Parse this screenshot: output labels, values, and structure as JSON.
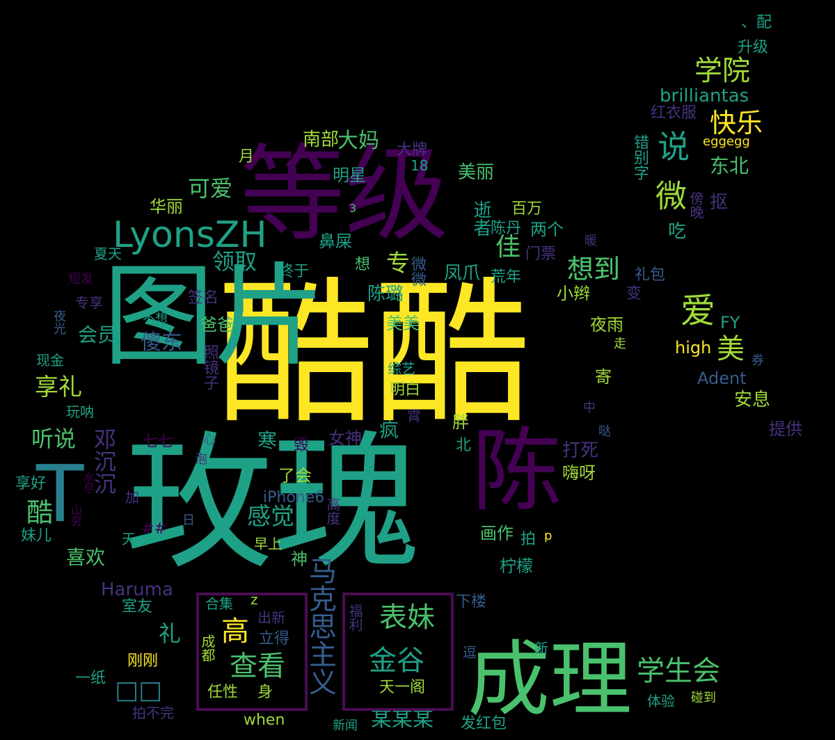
{
  "palette": {
    "yellow": "#fde725",
    "lime": "#a0da39",
    "green": "#4ac16d",
    "teal": "#1fa187",
    "cyan": "#277f8e",
    "blue": "#365c8d",
    "indigo": "#46327e",
    "purple": "#440154"
  },
  "words": [
    {
      "text": "酷酷",
      "color": "yellow"
    },
    {
      "text": "玫瑰",
      "color": "teal"
    },
    {
      "text": "等级",
      "color": "purple"
    },
    {
      "text": "成理",
      "color": "green"
    },
    {
      "text": "图片",
      "color": "teal"
    },
    {
      "text": "陈",
      "color": "purple"
    },
    {
      "text": "T",
      "color": "cyan"
    },
    {
      "text": "LyonsZH",
      "color": "teal"
    },
    {
      "text": "学院",
      "color": "lime"
    },
    {
      "text": "快乐",
      "color": "yellow"
    },
    {
      "text": "说",
      "color": "teal"
    },
    {
      "text": "爱",
      "color": "lime"
    },
    {
      "text": "美",
      "color": "lime"
    },
    {
      "text": "微",
      "color": "lime"
    },
    {
      "text": "学生会",
      "color": "green"
    },
    {
      "text": "表妹",
      "color": "green"
    },
    {
      "text": "金谷",
      "color": "teal"
    },
    {
      "text": "查看",
      "color": "green"
    },
    {
      "text": "高",
      "color": "yellow"
    },
    {
      "text": "马克思主义",
      "color": "blue"
    },
    {
      "text": "邓沉沉",
      "color": "indigo"
    },
    {
      "text": "想到",
      "color": "green"
    },
    {
      "text": "领取",
      "color": "teal"
    },
    {
      "text": "可爱",
      "color": "green"
    },
    {
      "text": "会员",
      "color": "teal"
    },
    {
      "text": "享礼",
      "color": "lime"
    },
    {
      "text": "听说",
      "color": "green"
    },
    {
      "text": "酷",
      "color": "green"
    },
    {
      "text": "感觉",
      "color": "teal"
    },
    {
      "text": "佳",
      "color": "green"
    },
    {
      "text": "专",
      "color": "lime"
    },
    {
      "text": "大妈",
      "color": "green"
    },
    {
      "text": "南部",
      "color": "lime"
    },
    {
      "text": "傻东",
      "color": "blue"
    },
    {
      "text": "寒",
      "color": "teal"
    },
    {
      "text": "礼",
      "color": "teal"
    },
    {
      "text": "喜欢",
      "color": "green"
    },
    {
      "text": "Haruma",
      "color": "indigo"
    },
    {
      "text": "某某某",
      "color": "teal"
    },
    {
      "text": "brilliantas",
      "color": "teal"
    },
    {
      "text": "东北",
      "color": "green"
    },
    {
      "text": "吃",
      "color": "teal"
    },
    {
      "text": "抠",
      "color": "indigo"
    },
    {
      "text": "红衣服",
      "color": "indigo"
    },
    {
      "text": "eggegg",
      "color": "yellow"
    },
    {
      "text": "错别字",
      "color": "teal"
    },
    {
      "text": "傍晚",
      "color": "indigo"
    },
    {
      "text": "FY",
      "color": "teal"
    },
    {
      "text": "high",
      "color": "yellow"
    },
    {
      "text": "Adent",
      "color": "blue"
    },
    {
      "text": "安息",
      "color": "lime"
    },
    {
      "text": "提供",
      "color": "indigo"
    },
    {
      "text": "升级",
      "color": "teal"
    },
    {
      "text": "、配",
      "color": "teal"
    },
    {
      "text": "礼包",
      "color": "blue"
    },
    {
      "text": "变",
      "color": "indigo"
    },
    {
      "text": "夜雨",
      "color": "lime"
    },
    {
      "text": "寄",
      "color": "lime"
    },
    {
      "text": "走",
      "color": "lime"
    },
    {
      "text": "券",
      "color": "blue"
    },
    {
      "text": "打死",
      "color": "indigo"
    },
    {
      "text": "嗨呀",
      "color": "lime"
    },
    {
      "text": "哒",
      "color": "blue"
    },
    {
      "text": "中",
      "color": "indigo"
    },
    {
      "text": "小辫",
      "color": "lime"
    },
    {
      "text": "想到",
      "color": "green"
    },
    {
      "text": "荒年",
      "color": "teal"
    },
    {
      "text": "门票",
      "color": "indigo"
    },
    {
      "text": "两个",
      "color": "teal"
    },
    {
      "text": "陈丹",
      "color": "teal"
    },
    {
      "text": "百万",
      "color": "lime"
    },
    {
      "text": "美丽",
      "color": "green"
    },
    {
      "text": "明星",
      "color": "teal"
    },
    {
      "text": "大牌",
      "color": "indigo"
    },
    {
      "text": "18",
      "color": "teal"
    },
    {
      "text": "逝者",
      "color": "teal"
    },
    {
      "text": "暖",
      "color": "indigo"
    },
    {
      "text": "凤爪",
      "color": "teal"
    },
    {
      "text": "微微",
      "color": "blue"
    },
    {
      "text": "陈璐",
      "color": "teal"
    },
    {
      "text": "美美",
      "color": "green"
    },
    {
      "text": "鼻屎",
      "color": "teal"
    },
    {
      "text": "想",
      "color": "green"
    },
    {
      "text": "3",
      "color": "green"
    },
    {
      "text": "终于",
      "color": "teal"
    },
    {
      "text": "签名",
      "color": "indigo"
    },
    {
      "text": "爸爸",
      "color": "green"
    },
    {
      "text": "华丽",
      "color": "lime"
    },
    {
      "text": "月",
      "color": "lime"
    },
    {
      "text": "夏天",
      "color": "teal"
    },
    {
      "text": "短发",
      "color": "purple"
    },
    {
      "text": "专享",
      "color": "indigo"
    },
    {
      "text": "不想",
      "color": "teal"
    },
    {
      "text": "夜光",
      "color": "blue"
    },
    {
      "text": "现金",
      "color": "teal"
    },
    {
      "text": "照镜子",
      "color": "indigo"
    },
    {
      "text": "综艺",
      "color": "teal"
    },
    {
      "text": "明白",
      "color": "lime"
    },
    {
      "text": "玩呐",
      "color": "teal"
    },
    {
      "text": "疯",
      "color": "teal"
    },
    {
      "text": "胖",
      "color": "lime"
    },
    {
      "text": "北",
      "color": "teal"
    },
    {
      "text": "霄",
      "color": "indigo"
    },
    {
      "text": "女神",
      "color": "indigo"
    },
    {
      "text": "七七",
      "color": "purple"
    },
    {
      "text": "心",
      "color": "blue"
    },
    {
      "text": "毁",
      "color": "purple"
    },
    {
      "text": "泡",
      "color": "indigo"
    },
    {
      "text": "了会",
      "color": "lime"
    },
    {
      "text": "享好",
      "color": "teal"
    },
    {
      "text": "水尽",
      "color": "purple"
    },
    {
      "text": "山穷",
      "color": "purple"
    },
    {
      "text": "加",
      "color": "indigo"
    },
    {
      "text": "iPhone6",
      "color": "blue"
    },
    {
      "text": "高度",
      "color": "indigo"
    },
    {
      "text": "##",
      "color": "purple"
    },
    {
      "text": "日",
      "color": "blue"
    },
    {
      "text": "妹儿",
      "color": "teal"
    },
    {
      "text": "天",
      "color": "teal"
    },
    {
      "text": "早上",
      "color": "lime"
    },
    {
      "text": "神",
      "color": "green"
    },
    {
      "text": "画作",
      "color": "green"
    },
    {
      "text": "拍",
      "color": "teal"
    },
    {
      "text": "p",
      "color": "yellow"
    },
    {
      "text": "柠檬",
      "color": "teal"
    },
    {
      "text": "下楼",
      "color": "blue"
    },
    {
      "text": "室友",
      "color": "teal"
    },
    {
      "text": "合集",
      "color": "teal"
    },
    {
      "text": "z",
      "color": "lime"
    },
    {
      "text": "出新",
      "color": "indigo"
    },
    {
      "text": "立得",
      "color": "blue"
    },
    {
      "text": "福利",
      "color": "indigo"
    },
    {
      "text": "成都",
      "color": "lime"
    },
    {
      "text": "任性",
      "color": "lime"
    },
    {
      "text": "身",
      "color": "lime"
    },
    {
      "text": "天一阁",
      "color": "lime"
    },
    {
      "text": "一纸",
      "color": "teal"
    },
    {
      "text": "刚刚",
      "color": "yellow"
    },
    {
      "text": "逗",
      "color": "blue"
    },
    {
      "text": "新",
      "color": "teal"
    },
    {
      "text": "体验",
      "color": "teal"
    },
    {
      "text": "碰到",
      "color": "lime"
    },
    {
      "text": "拍不完",
      "color": "indigo"
    },
    {
      "text": "when",
      "color": "lime"
    },
    {
      "text": "新闻",
      "color": "teal"
    },
    {
      "text": "发红包",
      "color": "teal"
    },
    {
      "text": "□□",
      "color": "cyan"
    }
  ]
}
